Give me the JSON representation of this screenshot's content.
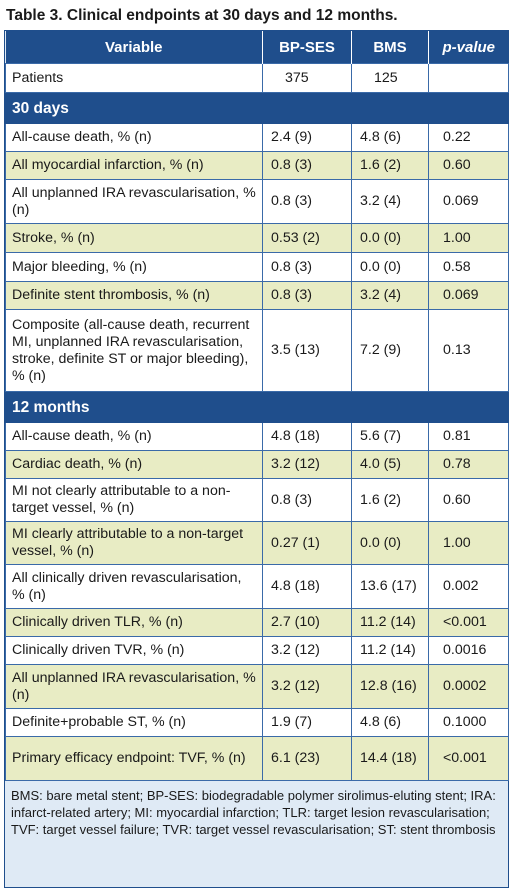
{
  "title": "Table 3. Clinical endpoints at 30 days and 12 months.",
  "headers": [
    "Variable",
    "BP-SES",
    "BMS",
    "p-value"
  ],
  "patients": {
    "label": "Patients",
    "bpses": "375",
    "bms": "125",
    "p": ""
  },
  "sections": [
    {
      "label": "30 days",
      "rows": [
        {
          "label": "All-cause death, % (n)",
          "bpses": "2.4 (9)",
          "bms": "4.8 (6)",
          "p": "0.22",
          "shade": "w",
          "h": 28
        },
        {
          "label": "All myocardial infarction, % (n)",
          "bpses": "0.8 (3)",
          "bms": "1.6 (2)",
          "p": "0.60",
          "shade": "g",
          "h": 28
        },
        {
          "label": "All unplanned IRA revascularisation, % (n)",
          "bpses": "0.8 (3)",
          "bms": "3.2 (4)",
          "p": "0.069",
          "shade": "w",
          "h": 44
        },
        {
          "label": "Stroke, % (n)",
          "bpses": "0.53 (2)",
          "bms": "0.0 (0)",
          "p": "1.00",
          "shade": "g",
          "h": 29
        },
        {
          "label": "Major bleeding, % (n)",
          "bpses": "0.8 (3)",
          "bms": "0.0 (0)",
          "p": "0.58",
          "shade": "w",
          "h": 29
        },
        {
          "label": "Definite stent thrombosis, % (n)",
          "bpses": "0.8 (3)",
          "bms": "3.2 (4)",
          "p": "0.069",
          "shade": "g",
          "h": 28
        },
        {
          "label": "Composite (all-cause death, recurrent MI, unplanned IRA revascularisation, stroke, definite ST or major bleeding), % (n)",
          "bpses": "3.5 (13)",
          "bms": "7.2 (9)",
          "p": "0.13",
          "shade": "w",
          "h": 82
        }
      ]
    },
    {
      "label": "12 months",
      "rows": [
        {
          "label": "All-cause death, % (n)",
          "bpses": "4.8 (18)",
          "bms": "5.6 (7)",
          "p": "0.81",
          "shade": "w",
          "h": 28
        },
        {
          "label": "Cardiac death, % (n)",
          "bpses": "3.2 (12)",
          "bms": "4.0 (5)",
          "p": "0.78",
          "shade": "g",
          "h": 28
        },
        {
          "label": "MI not clearly attributable to a non-target vessel, % (n)",
          "bpses": "0.8 (3)",
          "bms": "1.6 (2)",
          "p": "0.60",
          "shade": "w",
          "h": 43
        },
        {
          "label": "MI clearly attributable to a non-target vessel, % (n)",
          "bpses": "0.27 (1)",
          "bms": "0.0 (0)",
          "p": "1.00",
          "shade": "g",
          "h": 43
        },
        {
          "label": "All clinically driven revascularisation, % (n)",
          "bpses": "4.8 (18)",
          "bms": "13.6 (17)",
          "p": "0.002",
          "shade": "w",
          "h": 44
        },
        {
          "label": "Clinically driven TLR, % (n)",
          "bpses": "2.7 (10)",
          "bms": "11.2 (14)",
          "p": "<0.001",
          "shade": "g",
          "h": 28
        },
        {
          "label": "Clinically driven TVR, % (n)",
          "bpses": "3.2 (12)",
          "bms": "11.2 (14)",
          "p": "0.0016",
          "shade": "w",
          "h": 28
        },
        {
          "label": "All unplanned IRA revascularisation, % (n)",
          "bpses": "3.2 (12)",
          "bms": "12.8 (16)",
          "p": "0.0002",
          "shade": "g",
          "h": 44
        },
        {
          "label": "Definite+probable ST, % (n)",
          "bpses": "1.9 (7)",
          "bms": "4.8 (6)",
          "p": "0.1000",
          "shade": "w",
          "h": 28
        },
        {
          "label": "Primary efficacy endpoint: TVF, % (n)",
          "bpses": "6.1 (23)",
          "bms": "14.4 (18)",
          "p": "<0.001",
          "shade": "g",
          "h": 44
        }
      ]
    }
  ],
  "footnote": "BMS: bare metal stent; BP-SES: biodegradable polymer sirolimus-eluting stent; IRA: infarct-related artery; MI: myocardial infarction; TLR: target lesion revascularisation; TVF: target vessel failure; TVR: target vessel revascularisation; ST: stent thrombosis"
}
